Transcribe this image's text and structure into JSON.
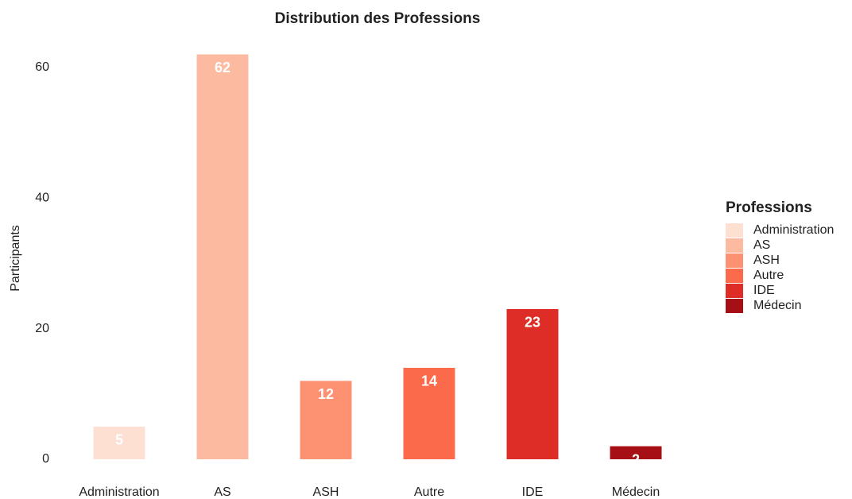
{
  "chart_data": {
    "type": "bar",
    "title": "Distribution des Professions",
    "ylabel": "Participants",
    "categories": [
      "Administration",
      "AS",
      "ASH",
      "Autre",
      "IDE",
      "Médecin"
    ],
    "values": [
      5,
      62,
      12,
      14,
      23,
      2
    ],
    "colors": [
      "#FEE0D2",
      "#FCBBA1",
      "#FC9272",
      "#FB6A4A",
      "#DE2D26",
      "#A50F15"
    ],
    "ylim": [
      0,
      64
    ],
    "yticks": [
      0,
      20,
      40,
      60
    ],
    "grid": false,
    "legend": {
      "title": "Professions",
      "position": "right"
    }
  }
}
